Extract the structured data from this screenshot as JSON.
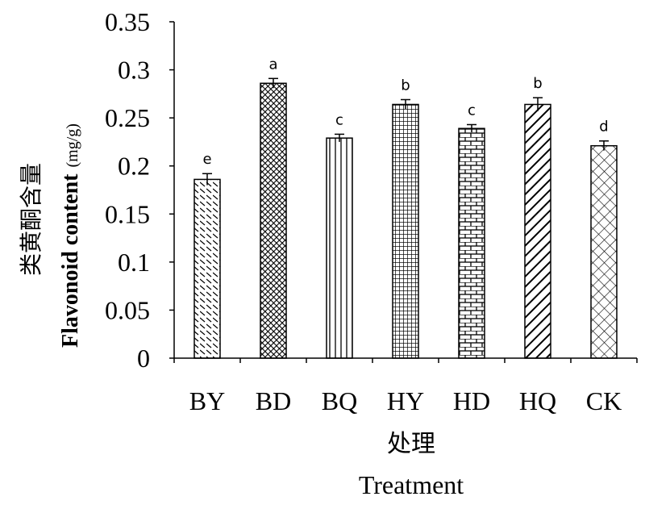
{
  "chart_data": {
    "type": "bar",
    "categories": [
      "BY",
      "BD",
      "BQ",
      "HY",
      "HD",
      "HQ",
      "CK"
    ],
    "values": [
      0.186,
      0.286,
      0.229,
      0.264,
      0.239,
      0.264,
      0.221
    ],
    "errors": [
      0.006,
      0.005,
      0.004,
      0.005,
      0.004,
      0.007,
      0.005
    ],
    "significance": [
      "e",
      "a",
      "c",
      "b",
      "c",
      "b",
      "d"
    ],
    "patterns": [
      "diagonal-dash",
      "dense-crosshatch",
      "vertical-lines",
      "grid",
      "brick",
      "thick-diagonal",
      "diamond-crosshatch"
    ],
    "ylim": [
      0,
      0.35
    ],
    "yticks": [
      "0",
      "0.05",
      "0.1",
      "0.15",
      "0.2",
      "0.25",
      "0.3",
      "0.35"
    ],
    "ylabel_cn": "类黄酮含量",
    "ylabel_en": "Flavonoid content",
    "ylabel_unit": "(mg/g)",
    "xlabel_cn": "处理",
    "xlabel_en": "Treatment",
    "grid": false,
    "legend": "none",
    "colors": {
      "axis": "#000000",
      "bar_fill": "#ffffff",
      "pattern": "#000000"
    }
  }
}
